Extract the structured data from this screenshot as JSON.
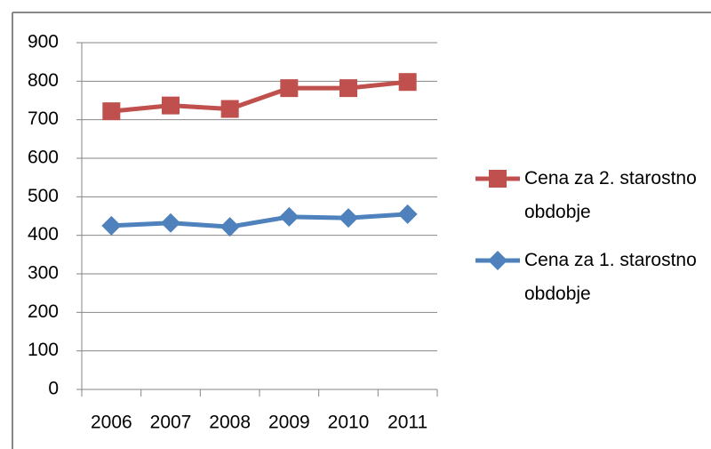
{
  "chart_data": {
    "type": "line",
    "categories": [
      "2006",
      "2007",
      "2008",
      "2009",
      "2010",
      "2011"
    ],
    "series": [
      {
        "name": "Cena za 2. starostno obdobje",
        "color": "#c0504d",
        "marker": "square",
        "values": [
          722,
          737,
          728,
          782,
          782,
          798
        ]
      },
      {
        "name": "Cena za 1. starostno obdobje",
        "color": "#4f81bd",
        "marker": "diamond",
        "values": [
          425,
          432,
          422,
          448,
          445,
          455
        ]
      }
    ],
    "ylim": [
      0,
      900
    ],
    "yticks": [
      0,
      100,
      200,
      300,
      400,
      500,
      600,
      700,
      800,
      900
    ],
    "grid": true
  }
}
